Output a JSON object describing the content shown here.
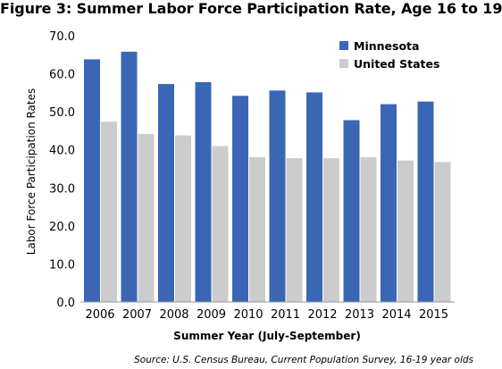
{
  "chart_data": {
    "type": "bar",
    "title": "Figure 3: Summer Labor Force Participation Rate, Age 16 to 19",
    "xlabel": "Summer Year (July-September)",
    "ylabel": "Labor Force Participation Rates",
    "source": "Source:  U.S. Census Bureau, Current Population Survey, 16-19 year olds",
    "categories": [
      "2006",
      "2007",
      "2008",
      "2009",
      "2010",
      "2011",
      "2012",
      "2013",
      "2014",
      "2015"
    ],
    "series": [
      {
        "name": "Minnesota",
        "color": "#3A66B5",
        "values": [
          63.8,
          65.8,
          57.3,
          57.8,
          54.2,
          55.6,
          55.1,
          47.8,
          52.0,
          52.7
        ]
      },
      {
        "name": "United States",
        "color": "#CCCCCC",
        "values": [
          47.4,
          44.2,
          43.8,
          41.0,
          38.1,
          37.8,
          37.8,
          38.1,
          37.2,
          36.8
        ]
      }
    ],
    "ylim": [
      0,
      70
    ],
    "yticks": [
      "0.0",
      "10.0",
      "20.0",
      "30.0",
      "40.0",
      "50.0",
      "60.0",
      "70.0"
    ],
    "grid": false,
    "legend": "top-right"
  }
}
